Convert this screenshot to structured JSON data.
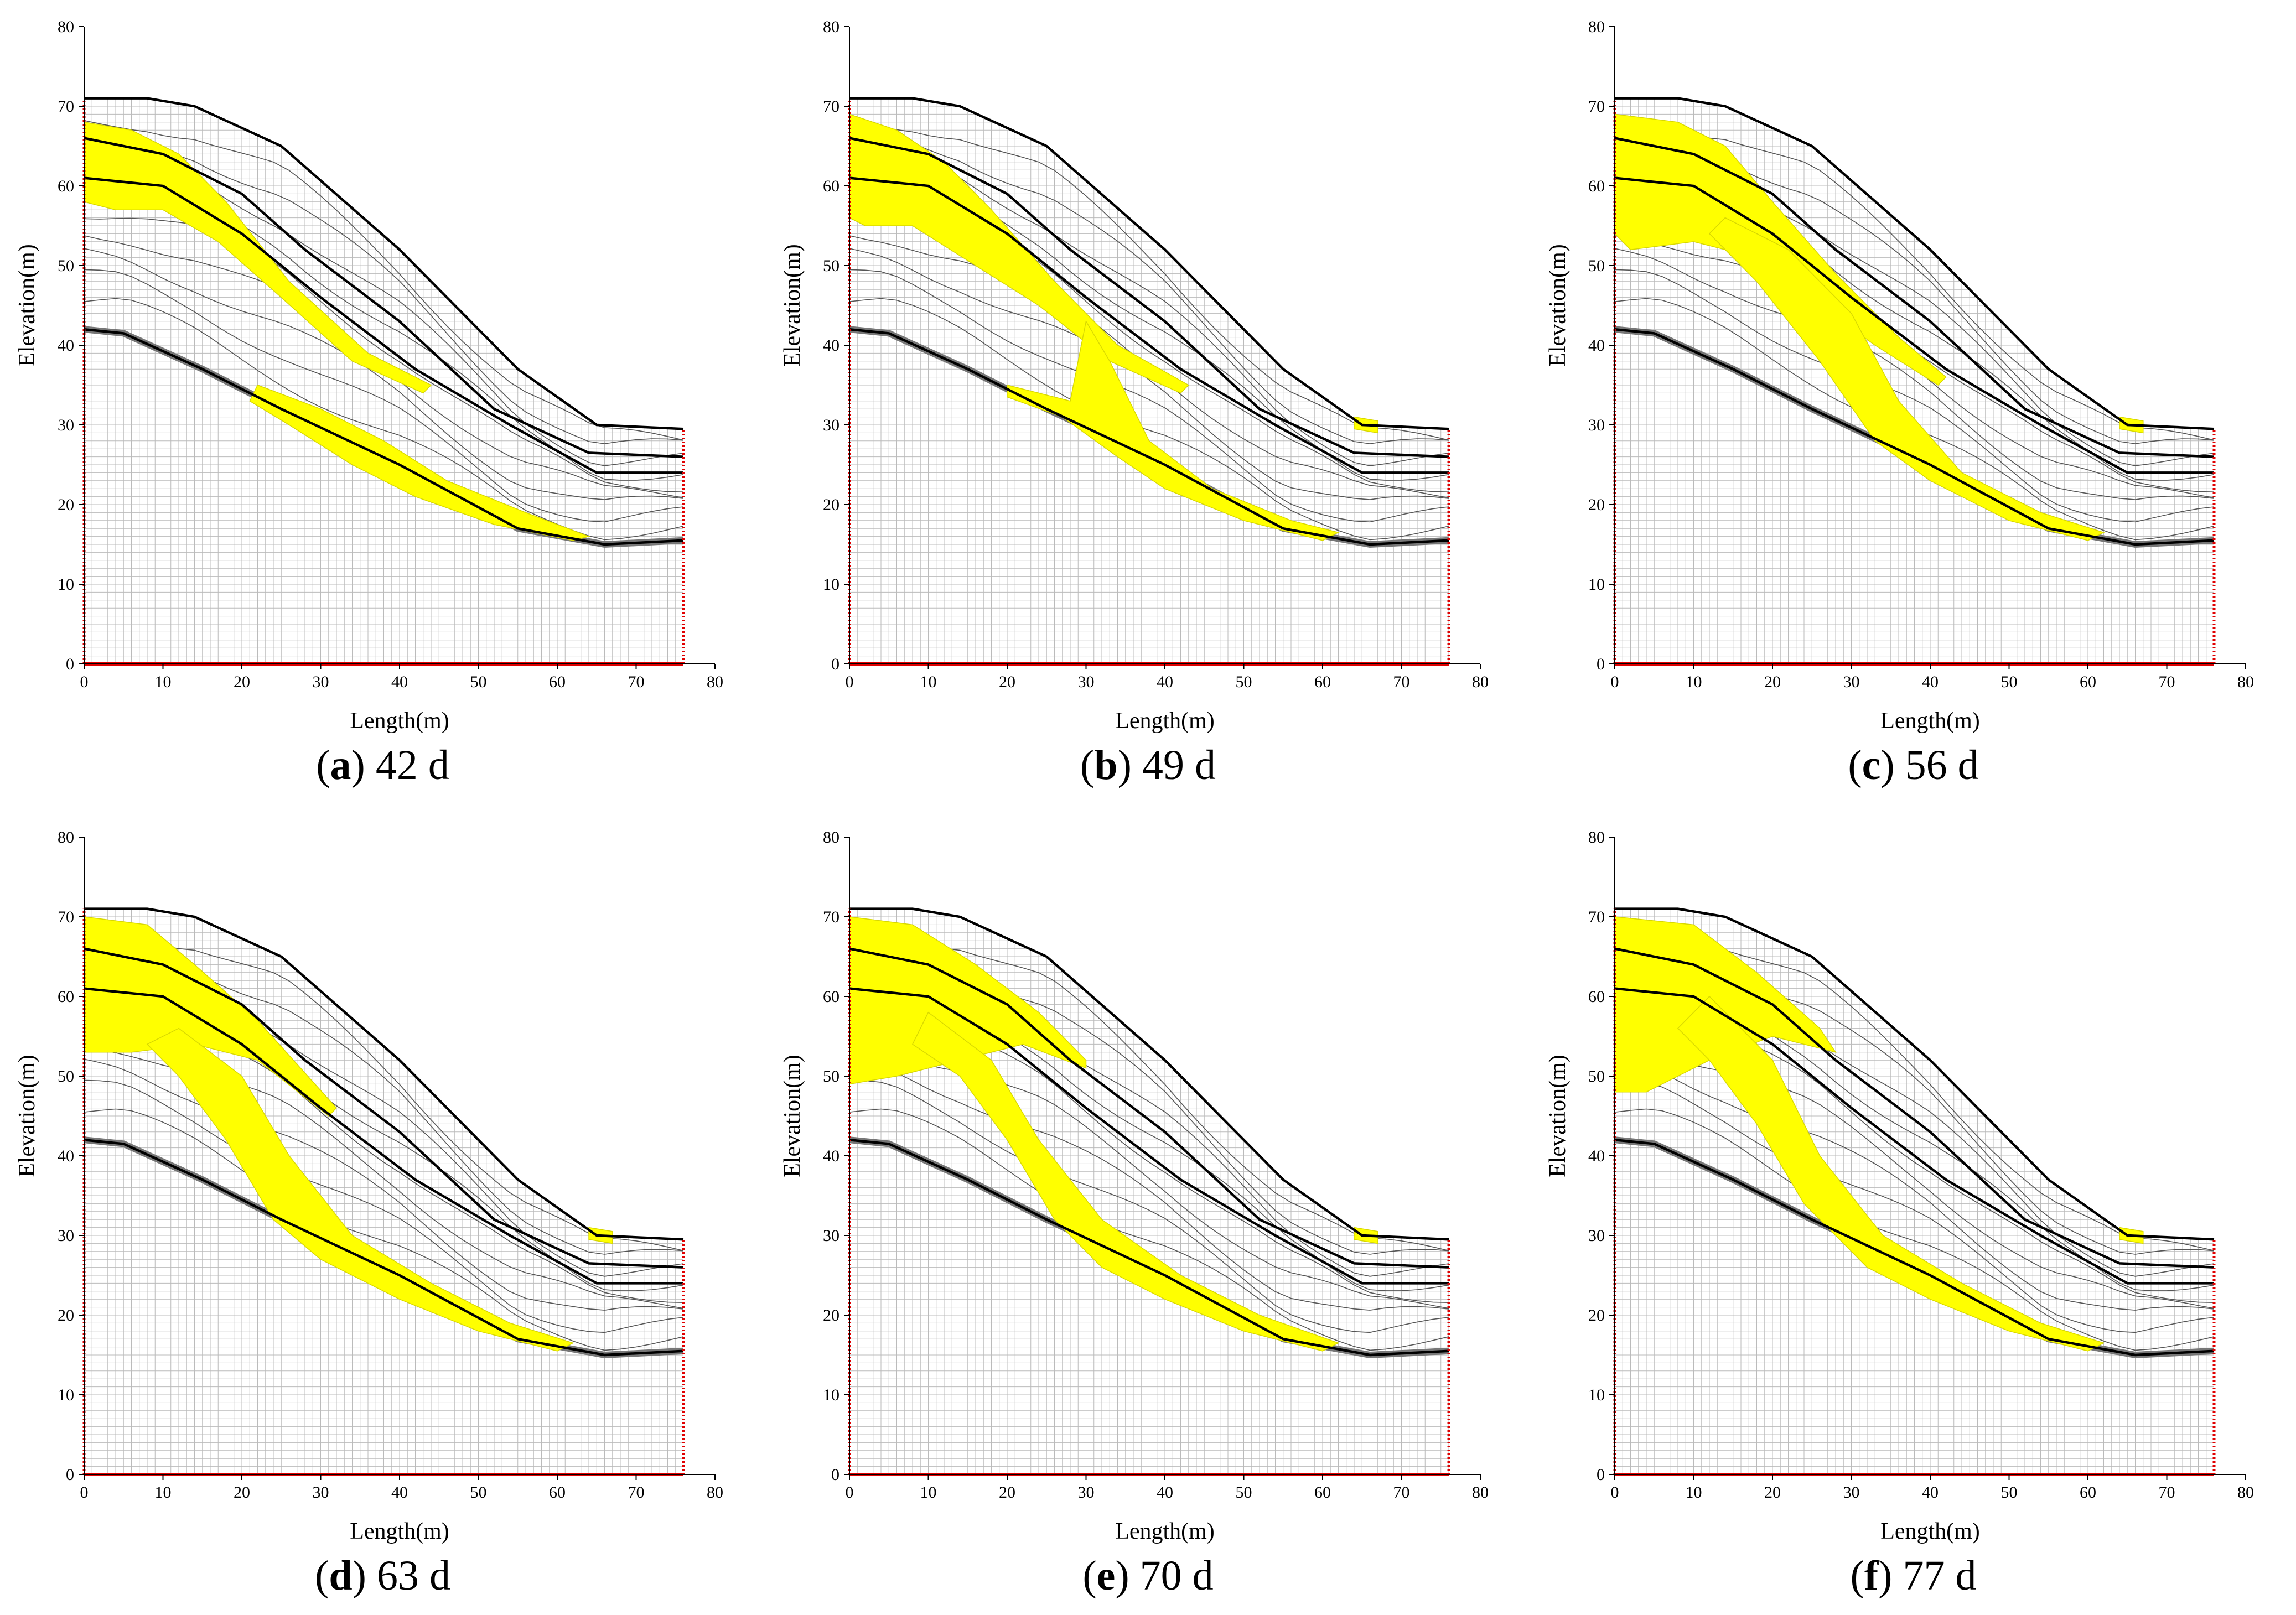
{
  "figure": {
    "panels": [
      {
        "letter": "a",
        "label": " 42 d"
      },
      {
        "letter": "b",
        "label": " 49 d"
      },
      {
        "letter": "c",
        "label": " 56 d"
      },
      {
        "letter": "d",
        "label": " 63 d"
      },
      {
        "letter": "e",
        "label": " 70 d"
      },
      {
        "letter": "f",
        "label": " 77 d"
      }
    ]
  },
  "chart_data": [
    {
      "type": "scatter",
      "title": "(a) 42 d",
      "xlabel": "Length(m)",
      "ylabel": "Elevation(m)",
      "xlim": [
        0,
        80
      ],
      "ylim": [
        0,
        80
      ],
      "xticks": [
        0,
        10,
        20,
        30,
        40,
        50,
        60,
        70,
        80
      ],
      "yticks": [
        0,
        10,
        20,
        30,
        40,
        50,
        60,
        70,
        80
      ],
      "colors": {
        "plastic_zone": "#ffff00",
        "boundary": "#e00000",
        "layers": "#000000",
        "mesh": "#bbbbbb",
        "contour": "#555555"
      },
      "plastic_zones": [
        {
          "name": "upper",
          "points": [
            [
              0,
              68
            ],
            [
              6,
              67
            ],
            [
              12,
              64
            ],
            [
              18,
              58
            ],
            [
              26,
              48
            ],
            [
              36,
              39
            ],
            [
              44,
              35
            ],
            [
              43,
              34
            ],
            [
              34,
              38
            ],
            [
              25,
              46
            ],
            [
              17,
              53
            ],
            [
              10,
              57
            ],
            [
              4,
              57
            ],
            [
              0,
              58
            ]
          ]
        },
        {
          "name": "lower",
          "points": [
            [
              22,
              35
            ],
            [
              30,
              32
            ],
            [
              38,
              28
            ],
            [
              46,
              23
            ],
            [
              56,
              19
            ],
            [
              64,
              16
            ],
            [
              62,
              15.5
            ],
            [
              52,
              17.5
            ],
            [
              42,
              21
            ],
            [
              34,
              25
            ],
            [
              26,
              30
            ],
            [
              21,
              33
            ]
          ]
        }
      ]
    },
    {
      "type": "scatter",
      "title": "(b) 49 d",
      "xlabel": "Length(m)",
      "ylabel": "Elevation(m)",
      "xlim": [
        0,
        80
      ],
      "ylim": [
        0,
        80
      ],
      "xticks": [
        0,
        10,
        20,
        30,
        40,
        50,
        60,
        70,
        80
      ],
      "yticks": [
        0,
        10,
        20,
        30,
        40,
        50,
        60,
        70,
        80
      ],
      "colors": {
        "plastic_zone": "#ffff00",
        "boundary": "#e00000",
        "layers": "#000000",
        "mesh": "#bbbbbb",
        "contour": "#555555"
      },
      "plastic_zones": [
        {
          "name": "upper",
          "points": [
            [
              0,
              69
            ],
            [
              6,
              67
            ],
            [
              12,
              63
            ],
            [
              18,
              57
            ],
            [
              26,
              48
            ],
            [
              34,
              40
            ],
            [
              43,
              35
            ],
            [
              42,
              34
            ],
            [
              33,
              38
            ],
            [
              24,
              45
            ],
            [
              16,
              50
            ],
            [
              8,
              55
            ],
            [
              2,
              55
            ],
            [
              0,
              56
            ]
          ]
        },
        {
          "name": "lower",
          "points": [
            [
              20,
              35
            ],
            [
              28,
              33
            ],
            [
              30,
              43
            ],
            [
              33,
              38
            ],
            [
              38,
              28
            ],
            [
              46,
              22
            ],
            [
              56,
              18
            ],
            [
              62,
              16.5
            ],
            [
              60,
              15.5
            ],
            [
              50,
              18
            ],
            [
              40,
              22
            ],
            [
              34,
              26
            ],
            [
              27,
              31
            ],
            [
              20,
              33.5
            ]
          ]
        },
        {
          "name": "toe",
          "points": [
            [
              64,
              31
            ],
            [
              67,
              30.5
            ],
            [
              67,
              29
            ],
            [
              64,
              29.5
            ]
          ]
        }
      ]
    },
    {
      "type": "scatter",
      "title": "(c) 56 d",
      "xlabel": "Length(m)",
      "ylabel": "Elevation(m)",
      "xlim": [
        0,
        80
      ],
      "ylim": [
        0,
        80
      ],
      "xticks": [
        0,
        10,
        20,
        30,
        40,
        50,
        60,
        70,
        80
      ],
      "yticks": [
        0,
        10,
        20,
        30,
        40,
        50,
        60,
        70,
        80
      ],
      "colors": {
        "plastic_zone": "#ffff00",
        "boundary": "#e00000",
        "layers": "#000000",
        "mesh": "#bbbbbb",
        "contour": "#555555"
      },
      "plastic_zones": [
        {
          "name": "upper",
          "points": [
            [
              0,
              69
            ],
            [
              8,
              68
            ],
            [
              14,
              65
            ],
            [
              20,
              58
            ],
            [
              28,
              49
            ],
            [
              36,
              41
            ],
            [
              42,
              36
            ],
            [
              41,
              35
            ],
            [
              33,
              40
            ],
            [
              26,
              45
            ],
            [
              18,
              51
            ],
            [
              10,
              53
            ],
            [
              2,
              52
            ],
            [
              0,
              54
            ]
          ]
        },
        {
          "name": "lower",
          "points": [
            [
              14,
              56
            ],
            [
              22,
              52
            ],
            [
              30,
              44
            ],
            [
              36,
              33
            ],
            [
              44,
              24
            ],
            [
              54,
              19
            ],
            [
              62,
              16.5
            ],
            [
              60,
              15.5
            ],
            [
              50,
              18
            ],
            [
              40,
              23
            ],
            [
              33,
              28
            ],
            [
              26,
              38
            ],
            [
              18,
              48
            ],
            [
              12,
              54
            ]
          ]
        },
        {
          "name": "toe",
          "points": [
            [
              64,
              31
            ],
            [
              67,
              30.5
            ],
            [
              67,
              29
            ],
            [
              64,
              29.5
            ]
          ]
        }
      ]
    },
    {
      "type": "scatter",
      "title": "(d) 63 d",
      "xlabel": "Length(m)",
      "ylabel": "Elevation(m)",
      "xlim": [
        0,
        80
      ],
      "ylim": [
        0,
        80
      ],
      "xticks": [
        0,
        10,
        20,
        30,
        40,
        50,
        60,
        70,
        80
      ],
      "yticks": [
        0,
        10,
        20,
        30,
        40,
        50,
        60,
        70,
        80
      ],
      "colors": {
        "plastic_zone": "#ffff00",
        "boundary": "#e00000",
        "layers": "#000000",
        "mesh": "#bbbbbb",
        "contour": "#555555"
      },
      "plastic_zones": [
        {
          "name": "upper",
          "points": [
            [
              0,
              70
            ],
            [
              8,
              69
            ],
            [
              14,
              64
            ],
            [
              22,
              57
            ],
            [
              32,
              46
            ],
            [
              31,
              45
            ],
            [
              22,
              52
            ],
            [
              14,
              54
            ],
            [
              6,
              53
            ],
            [
              0,
              53
            ]
          ]
        },
        {
          "name": "lower",
          "points": [
            [
              12,
              56
            ],
            [
              20,
              50
            ],
            [
              26,
              40
            ],
            [
              34,
              30
            ],
            [
              44,
              24
            ],
            [
              54,
              19
            ],
            [
              62,
              16.5
            ],
            [
              60,
              15.5
            ],
            [
              50,
              18
            ],
            [
              40,
              22
            ],
            [
              30,
              27
            ],
            [
              24,
              32
            ],
            [
              18,
              42
            ],
            [
              12,
              50
            ],
            [
              8,
              54
            ]
          ]
        },
        {
          "name": "toe",
          "points": [
            [
              64,
              31
            ],
            [
              67,
              30.5
            ],
            [
              67,
              29
            ],
            [
              64,
              29.5
            ]
          ]
        }
      ]
    },
    {
      "type": "scatter",
      "title": "(e) 70 d",
      "xlabel": "Length(m)",
      "ylabel": "Elevation(m)",
      "xlim": [
        0,
        80
      ],
      "ylim": [
        0,
        80
      ],
      "xticks": [
        0,
        10,
        20,
        30,
        40,
        50,
        60,
        70,
        80
      ],
      "yticks": [
        0,
        10,
        20,
        30,
        40,
        50,
        60,
        70,
        80
      ],
      "colors": {
        "plastic_zone": "#ffff00",
        "boundary": "#e00000",
        "layers": "#000000",
        "mesh": "#bbbbbb",
        "contour": "#555555"
      },
      "plastic_zones": [
        {
          "name": "upper",
          "points": [
            [
              0,
              70
            ],
            [
              8,
              69
            ],
            [
              16,
              64
            ],
            [
              24,
              58
            ],
            [
              30,
              52
            ],
            [
              30,
              51
            ],
            [
              22,
              54
            ],
            [
              14,
              52
            ],
            [
              6,
              50
            ],
            [
              0,
              49
            ]
          ]
        },
        {
          "name": "lower",
          "points": [
            [
              10,
              58
            ],
            [
              18,
              52
            ],
            [
              24,
              42
            ],
            [
              32,
              32
            ],
            [
              42,
              25
            ],
            [
              52,
              20
            ],
            [
              62,
              16.5
            ],
            [
              60,
              15.5
            ],
            [
              50,
              18
            ],
            [
              40,
              22
            ],
            [
              32,
              26
            ],
            [
              26,
              32
            ],
            [
              20,
              42
            ],
            [
              14,
              50
            ],
            [
              8,
              54
            ]
          ]
        },
        {
          "name": "toe",
          "points": [
            [
              64,
              31
            ],
            [
              67,
              30.5
            ],
            [
              67,
              29
            ],
            [
              64,
              29.5
            ]
          ]
        }
      ]
    },
    {
      "type": "scatter",
      "title": "(f) 77 d",
      "xlabel": "Length(m)",
      "ylabel": "Elevation(m)",
      "xlim": [
        0,
        80
      ],
      "ylim": [
        0,
        80
      ],
      "xticks": [
        0,
        10,
        20,
        30,
        40,
        50,
        60,
        70,
        80
      ],
      "yticks": [
        0,
        10,
        20,
        30,
        40,
        50,
        60,
        70,
        80
      ],
      "colors": {
        "plastic_zone": "#ffff00",
        "boundary": "#e00000",
        "layers": "#000000",
        "mesh": "#bbbbbb",
        "contour": "#555555"
      },
      "plastic_zones": [
        {
          "name": "upper",
          "points": [
            [
              0,
              70
            ],
            [
              10,
              69
            ],
            [
              18,
              63
            ],
            [
              26,
              56
            ],
            [
              28,
              53
            ],
            [
              20,
              55
            ],
            [
              12,
              52
            ],
            [
              4,
              48
            ],
            [
              0,
              48
            ]
          ]
        },
        {
          "name": "lower",
          "points": [
            [
              12,
              60
            ],
            [
              20,
              52
            ],
            [
              26,
              40
            ],
            [
              34,
              30
            ],
            [
              44,
              24
            ],
            [
              54,
              19
            ],
            [
              62,
              16.5
            ],
            [
              60,
              15.5
            ],
            [
              50,
              18
            ],
            [
              40,
              22
            ],
            [
              32,
              26
            ],
            [
              24,
              34
            ],
            [
              18,
              44
            ],
            [
              12,
              52
            ],
            [
              8,
              56
            ]
          ]
        },
        {
          "name": "toe",
          "points": [
            [
              64,
              31
            ],
            [
              67,
              30.5
            ],
            [
              67,
              29
            ],
            [
              64,
              29.5
            ]
          ]
        }
      ]
    }
  ],
  "geometry": {
    "ground_surface": [
      [
        0,
        71
      ],
      [
        8,
        71
      ],
      [
        14,
        70
      ],
      [
        25,
        65
      ],
      [
        40,
        52
      ],
      [
        55,
        37
      ],
      [
        65,
        30
      ],
      [
        76,
        29.5
      ]
    ],
    "layer_2": [
      [
        0,
        66
      ],
      [
        10,
        64
      ],
      [
        20,
        59
      ],
      [
        28,
        52
      ],
      [
        40,
        43
      ],
      [
        52,
        32
      ],
      [
        64,
        26.5
      ],
      [
        76,
        26
      ]
    ],
    "layer_3": [
      [
        0,
        61
      ],
      [
        10,
        60
      ],
      [
        20,
        54
      ],
      [
        30,
        46
      ],
      [
        42,
        37
      ],
      [
        54,
        30
      ],
      [
        65,
        24
      ],
      [
        76,
        24
      ]
    ],
    "bedrock": [
      [
        0,
        42
      ],
      [
        5,
        41.5
      ],
      [
        15,
        37
      ],
      [
        25,
        32
      ],
      [
        40,
        25
      ],
      [
        55,
        17
      ],
      [
        66,
        15
      ],
      [
        76,
        15.5
      ]
    ],
    "model_width": 76,
    "model_height": 71
  }
}
